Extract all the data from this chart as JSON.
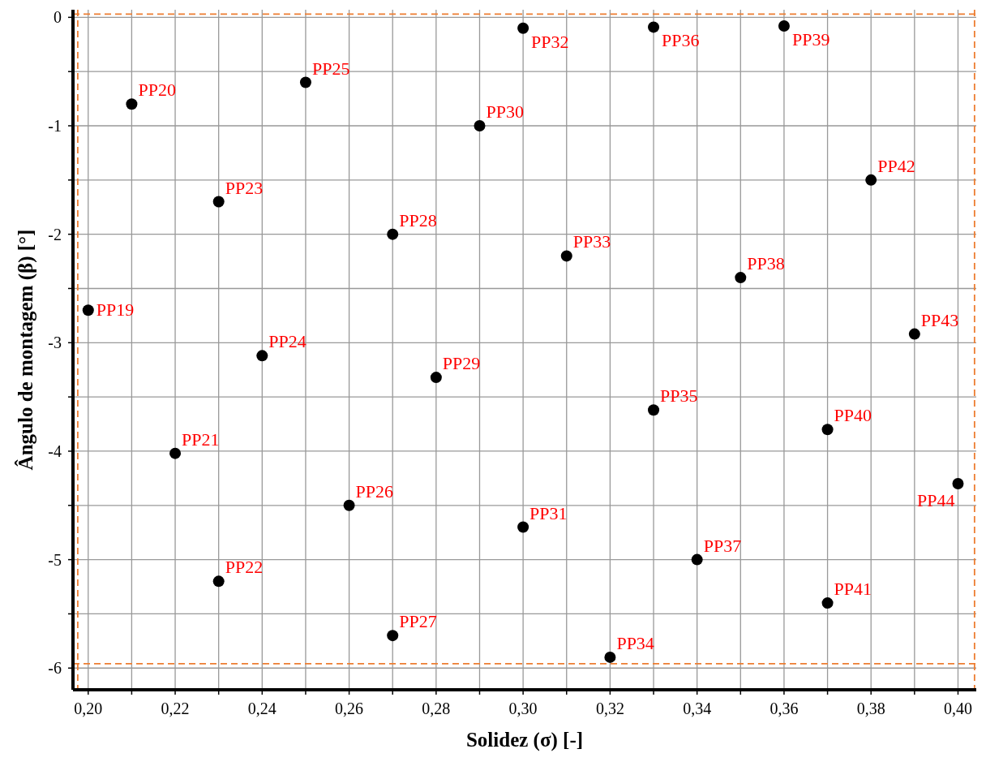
{
  "chart_data": {
    "type": "scatter",
    "xlabel": "Solidez (σ) [-]",
    "ylabel": "Ângulo de montagem (β) [°]",
    "x": [
      0.2,
      0.21,
      0.22,
      0.23,
      0.23,
      0.24,
      0.25,
      0.26,
      0.27,
      0.27,
      0.28,
      0.29,
      0.3,
      0.3,
      0.31,
      0.32,
      0.33,
      0.33,
      0.34,
      0.35,
      0.36,
      0.37,
      0.37,
      0.38,
      0.39,
      0.4
    ],
    "values": [
      -2.7,
      -0.8,
      -4.02,
      -5.2,
      -1.7,
      -3.12,
      -0.6,
      -4.5,
      -5.7,
      -2.0,
      -3.32,
      -1.0,
      -4.7,
      -0.1,
      -2.2,
      -5.9,
      -3.62,
      -0.09,
      -5.0,
      -2.4,
      -0.08,
      -3.8,
      -5.4,
      -1.5,
      -2.92,
      -4.3
    ],
    "color": "#000000",
    "marker": "circle",
    "grid": true,
    "xlim": [
      0.1965,
      0.4042
    ],
    "ylim": [
      -6.2,
      0.07
    ],
    "xticks": [
      {
        "value": 0.2,
        "label": "0,20"
      },
      {
        "value": 0.21,
        "label": null
      },
      {
        "value": 0.22,
        "label": "0,22"
      },
      {
        "value": 0.23,
        "label": null
      },
      {
        "value": 0.24,
        "label": "0,24"
      },
      {
        "value": 0.25,
        "label": null
      },
      {
        "value": 0.26,
        "label": "0,26"
      },
      {
        "value": 0.27,
        "label": null
      },
      {
        "value": 0.28,
        "label": "0,28"
      },
      {
        "value": 0.29,
        "label": null
      },
      {
        "value": 0.3,
        "label": "0,30"
      },
      {
        "value": 0.31,
        "label": null
      },
      {
        "value": 0.32,
        "label": "0,32"
      },
      {
        "value": 0.33,
        "label": null
      },
      {
        "value": 0.34,
        "label": "0,34"
      },
      {
        "value": 0.35,
        "label": null
      },
      {
        "value": 0.36,
        "label": "0,36"
      },
      {
        "value": 0.37,
        "label": null
      },
      {
        "value": 0.38,
        "label": "0,38"
      },
      {
        "value": 0.39,
        "label": null
      },
      {
        "value": 0.4,
        "label": "0,40"
      }
    ],
    "yticks": [
      -6,
      {
        "value": -5.5,
        "label": null
      },
      -5,
      {
        "value": -4.5,
        "label": null
      },
      -4,
      {
        "value": -3.5,
        "label": null
      },
      -3,
      {
        "value": -2.5,
        "label": null
      },
      -2,
      {
        "value": -1.5,
        "label": null
      },
      -1,
      {
        "value": -0.5,
        "label": null
      },
      0
    ],
    "ref_lines": [
      {
        "axis": "x",
        "value": 0.1976,
        "label": null,
        "color": "#ed7d31",
        "line_style": "dashed"
      },
      {
        "axis": "x",
        "value": 0.4038,
        "label": null,
        "color": "#ed7d31",
        "line_style": "dashed"
      },
      {
        "axis": "y",
        "value": 0.03,
        "label": null,
        "color": "#ed7d31",
        "line_style": "dashed"
      },
      {
        "axis": "y",
        "value": -5.96,
        "label": null,
        "color": "#ed7d31",
        "line_style": "dashed"
      }
    ],
    "annotations": [
      {
        "text": "PP19",
        "x": 0.2,
        "y": -2.7
      },
      {
        "text": "PP20",
        "x": 0.21,
        "y": -0.8
      },
      {
        "text": "PP21",
        "x": 0.22,
        "y": -4.02
      },
      {
        "text": "PP22",
        "x": 0.23,
        "y": -5.2
      },
      {
        "text": "PP23",
        "x": 0.23,
        "y": -1.7
      },
      {
        "text": "PP24",
        "x": 0.24,
        "y": -3.12
      },
      {
        "text": "PP25",
        "x": 0.25,
        "y": -0.6
      },
      {
        "text": "PP26",
        "x": 0.26,
        "y": -4.5
      },
      {
        "text": "PP27",
        "x": 0.27,
        "y": -5.7
      },
      {
        "text": "PP28",
        "x": 0.27,
        "y": -2.0
      },
      {
        "text": "PP29",
        "x": 0.28,
        "y": -3.32
      },
      {
        "text": "PP30",
        "x": 0.29,
        "y": -1.0
      },
      {
        "text": "PP31",
        "x": 0.3,
        "y": -4.7
      },
      {
        "text": "PP32",
        "x": 0.3,
        "y": -0.1
      },
      {
        "text": "PP33",
        "x": 0.31,
        "y": -2.2
      },
      {
        "text": "PP34",
        "x": 0.32,
        "y": -5.9
      },
      {
        "text": "PP35",
        "x": 0.33,
        "y": -3.62
      },
      {
        "text": "PP36",
        "x": 0.33,
        "y": -0.09
      },
      {
        "text": "PP37",
        "x": 0.34,
        "y": -5.0
      },
      {
        "text": "PP38",
        "x": 0.35,
        "y": -2.4
      },
      {
        "text": "PP39",
        "x": 0.36,
        "y": -0.08
      },
      {
        "text": "PP40",
        "x": 0.37,
        "y": -3.8
      },
      {
        "text": "PP41",
        "x": 0.37,
        "y": -5.4
      },
      {
        "text": "PP42",
        "x": 0.38,
        "y": -1.5
      },
      {
        "text": "PP43",
        "x": 0.39,
        "y": -2.92
      },
      {
        "text": "PP44",
        "x": 0.4,
        "y": -4.3
      }
    ]
  }
}
